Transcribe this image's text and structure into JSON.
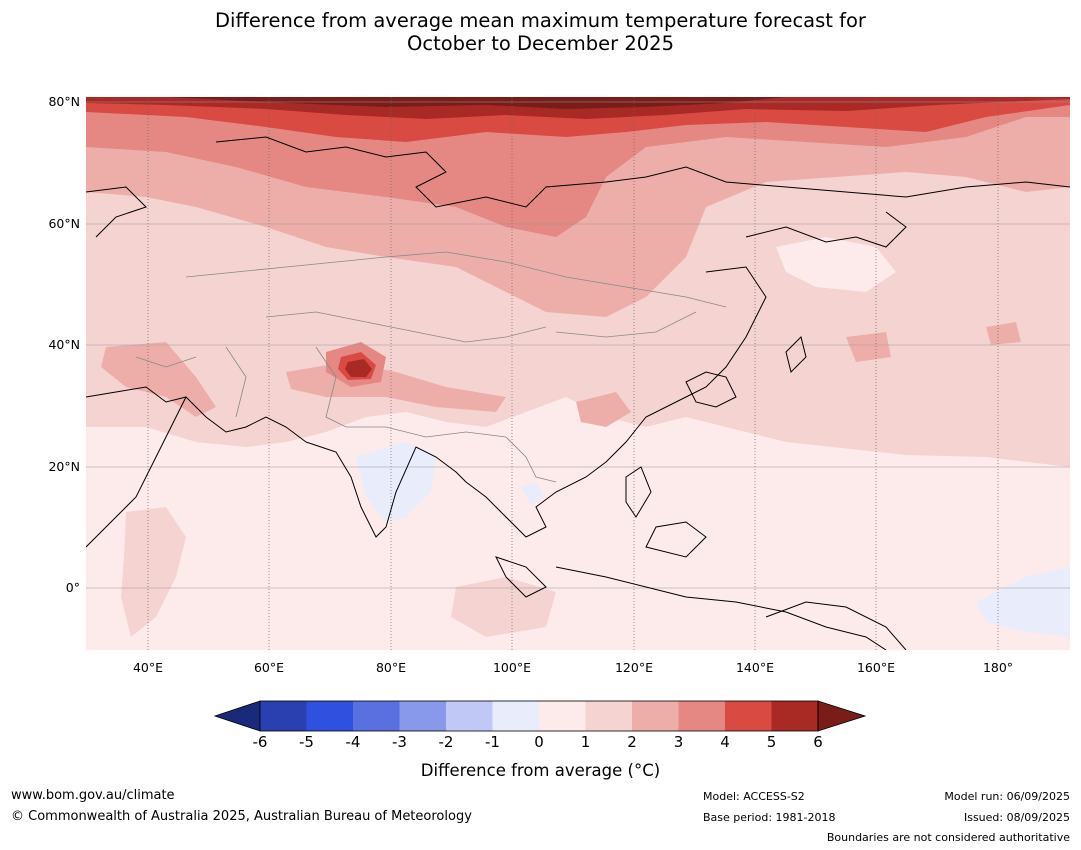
{
  "title_line1": "Difference from average mean maximum temperature forecast for",
  "title_line2": "October to December 2025",
  "lat_labels": [
    "80°N",
    "60°N",
    "40°N",
    "20°N",
    "0°"
  ],
  "lon_labels": [
    "40°E",
    "60°E",
    "80°E",
    "100°E",
    "120°E",
    "140°E",
    "160°E",
    "180°"
  ],
  "colorbar": {
    "ticks": [
      "-6",
      "-5",
      "-4",
      "-3",
      "-2",
      "-1",
      "0",
      "1",
      "2",
      "3",
      "4",
      "5",
      "6"
    ],
    "label": "Difference from average (°C)",
    "colors": {
      "below_min": "#1a2a7a",
      "m6_m5": "#2a3fb0",
      "m5_m4": "#3050e0",
      "m4_m3": "#5a70e0",
      "m3_m2": "#8898ea",
      "m2_m1": "#c0c8f5",
      "m1_0": "#e8ecfb",
      "p0_1": "#fcebea",
      "p1_2": "#f5d3d1",
      "p2_3": "#edaeaa",
      "p3_4": "#e58883",
      "p4_5": "#d84a42",
      "p5_6": "#a92a24",
      "above_max": "#7a1c18"
    }
  },
  "footer": {
    "website": "www.bom.gov.au/climate",
    "copyright": "© Commonwealth of Australia 2025, Australian Bureau of Meteorology",
    "model": "Model: ACCESS-S2",
    "base_period": "Base period: 1981-2018",
    "model_run": "Model run: 06/09/2025",
    "issued": "Issued: 08/09/2025",
    "disclaimer": "Boundaries are not considered authoritative"
  }
}
